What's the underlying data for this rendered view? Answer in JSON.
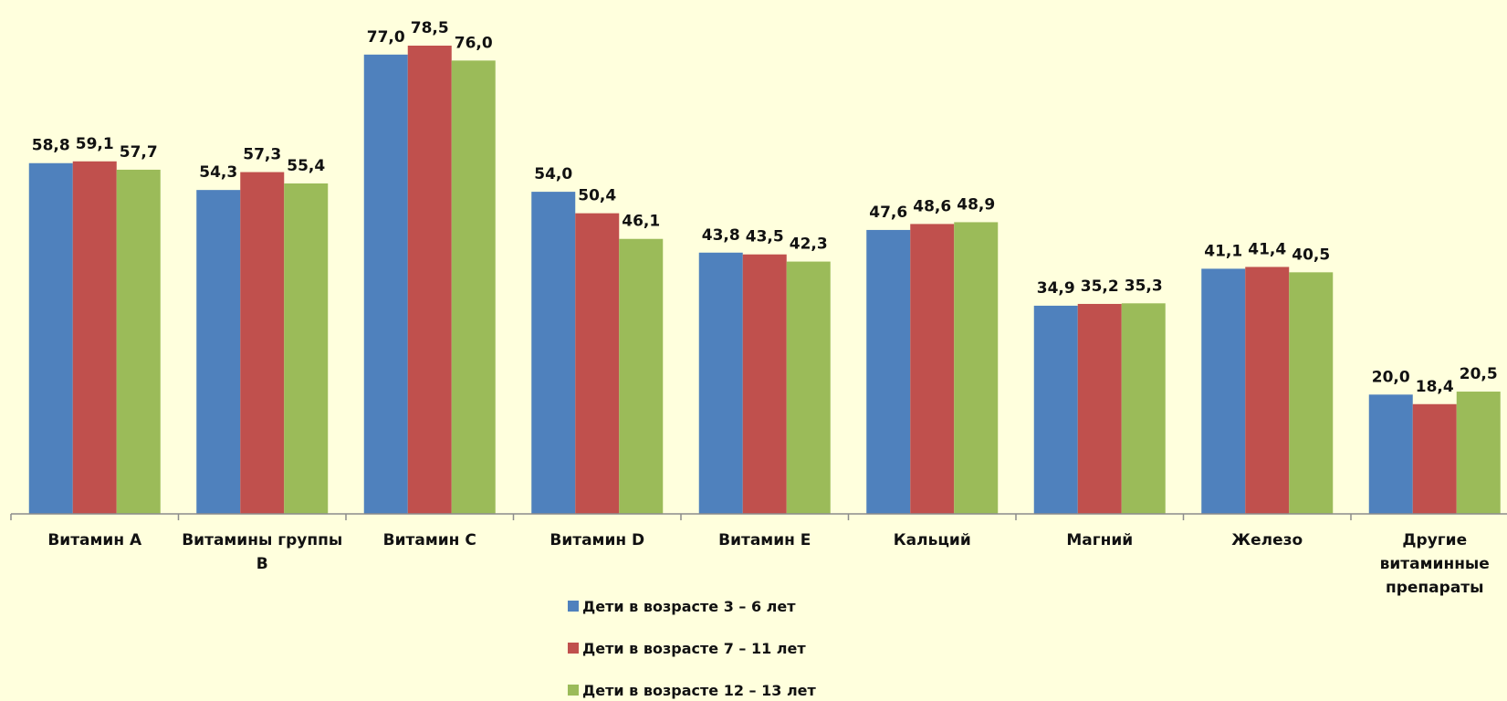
{
  "chart_data": {
    "type": "bar",
    "title": "",
    "xlabel": "",
    "ylabel": "",
    "ylim": [
      0,
      85
    ],
    "grid": false,
    "legend_position": "bottom",
    "categories": [
      [
        "Витамин А"
      ],
      [
        "Витамины группы",
        "В"
      ],
      [
        "Витамин С"
      ],
      [
        "Витамин D"
      ],
      [
        "Витамин Е"
      ],
      [
        "Кальций"
      ],
      [
        "Магний"
      ],
      [
        "Железо"
      ],
      [
        "Другие",
        "витаминные",
        "препараты"
      ]
    ],
    "series": [
      {
        "name": "Дети в возрасте 3 – 6 лет",
        "color": "#4f81bd",
        "values": [
          58.8,
          54.3,
          77.0,
          54.0,
          43.8,
          47.6,
          34.9,
          41.1,
          20.0
        ],
        "labels": [
          "58,8",
          "54,3",
          "77,0",
          "54,0",
          "43,8",
          "47,6",
          "34,9",
          "41,1",
          "20,0"
        ]
      },
      {
        "name": "Дети в возрасте 7 – 11 лет",
        "color": "#c0504d",
        "values": [
          59.1,
          57.3,
          78.5,
          50.4,
          43.5,
          48.6,
          35.2,
          41.4,
          18.4
        ],
        "labels": [
          "59,1",
          "57,3",
          "78,5",
          "50,4",
          "43,5",
          "48,6",
          "35,2",
          "41,4",
          "18,4"
        ]
      },
      {
        "name": "Дети в возрасте 12 – 13 лет",
        "color": "#9bbb59",
        "values": [
          57.7,
          55.4,
          76.0,
          46.1,
          42.3,
          48.9,
          35.3,
          40.5,
          20.5
        ],
        "labels": [
          "57,7",
          "55,4",
          "76,0",
          "46,1",
          "42,3",
          "48,9",
          "35,3",
          "40,5",
          "20,5"
        ]
      }
    ]
  }
}
